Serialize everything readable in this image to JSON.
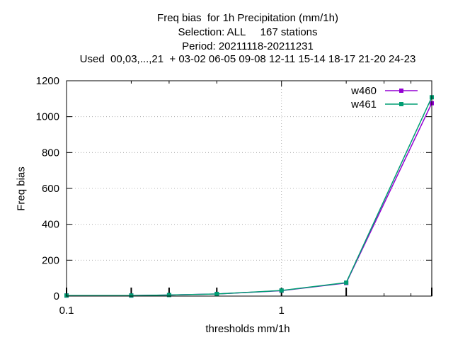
{
  "chart_data": {
    "type": "line",
    "title_lines": [
      "Freq bias  for 1h Precipitation (mm/1h)",
      "Selection: ALL     167 stations",
      "Period: 20211118-20211231",
      "Used  00,03,...,21  + 03-02 06-05 09-08 12-11 15-14 18-17 21-20 24-23"
    ],
    "xlabel": "thresholds mm/1h",
    "ylabel": "Freq bias",
    "x_scale": "log",
    "xlim": [
      0.1,
      5
    ],
    "ylim": [
      0,
      1200
    ],
    "x_ticks": [
      0.1,
      1
    ],
    "x_tick_labels": [
      "0.1",
      "1"
    ],
    "x_minor_ticks": [
      0.2,
      0.3,
      0.5,
      2,
      3,
      4,
      5
    ],
    "y_ticks": [
      0,
      200,
      400,
      600,
      800,
      1000,
      1200
    ],
    "grid": true,
    "legend_position": "top-right",
    "series": [
      {
        "name": "w460",
        "color": "#9400d3",
        "x": [
          0.1,
          0.2,
          0.3,
          0.5,
          1,
          2,
          5
        ],
        "y": [
          3,
          3,
          6,
          12,
          30,
          73,
          1075
        ]
      },
      {
        "name": "w461",
        "color": "#009e73",
        "x": [
          0.1,
          0.2,
          0.3,
          0.5,
          1,
          2,
          5
        ],
        "y": [
          3,
          3,
          6,
          12,
          31,
          75,
          1108
        ]
      }
    ]
  }
}
